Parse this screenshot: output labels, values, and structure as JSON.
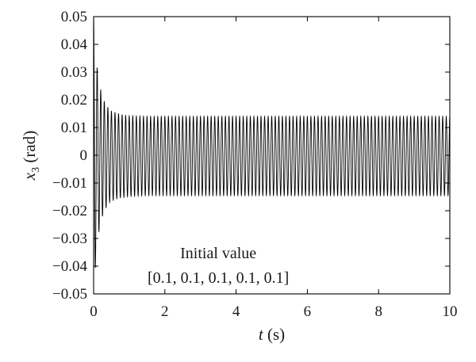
{
  "chart_data": {
    "type": "line",
    "title": "",
    "xlabel_var": "t",
    "xlabel_unit": " (s)",
    "ylabel_var": "x",
    "ylabel_sub": "3",
    "ylabel_unit": " (rad)",
    "xlim": [
      0,
      10
    ],
    "ylim": [
      -0.05,
      0.05
    ],
    "xticks": [
      "0",
      "2",
      "4",
      "6",
      "8",
      "10"
    ],
    "xtick_values": [
      0,
      2,
      4,
      6,
      8,
      10
    ],
    "yticks": [
      "0.05",
      "0.04",
      "0.03",
      "0.02",
      "0.01",
      "0",
      "−0.01",
      "−0.02",
      "−0.03",
      "−0.04",
      "−0.05"
    ],
    "ytick_values": [
      0.05,
      0.04,
      0.03,
      0.02,
      0.01,
      0,
      -0.01,
      -0.02,
      -0.03,
      -0.04,
      -0.05
    ],
    "grid": false,
    "series": [
      {
        "color": "#000000",
        "signal": {
          "kind": "decaying_oscillation",
          "frequency_hz": 10,
          "steady_amplitude": 0.014,
          "peaks": [
            [
              0.0,
              0.05
            ],
            [
              0.05,
              0.037
            ],
            [
              0.15,
              0.026
            ],
            [
              0.25,
              0.021
            ],
            [
              0.35,
              0.018
            ],
            [
              0.5,
              0.016
            ],
            [
              0.75,
              0.0148
            ],
            [
              1.0,
              0.0142
            ],
            [
              1.5,
              0.014
            ],
            [
              10.0,
              0.014
            ]
          ],
          "troughs": [
            [
              0.0,
              -0.05
            ],
            [
              0.1,
              -0.031
            ],
            [
              0.2,
              -0.024
            ],
            [
              0.3,
              -0.02
            ],
            [
              0.45,
              -0.017
            ],
            [
              0.7,
              -0.0155
            ],
            [
              1.0,
              -0.0148
            ],
            [
              1.5,
              -0.0145
            ],
            [
              10.0,
              -0.0145
            ]
          ]
        }
      }
    ],
    "annotations": [
      "Initial value",
      "[0.1, 0.1, 0.1, 0.1, 0.1]"
    ]
  }
}
